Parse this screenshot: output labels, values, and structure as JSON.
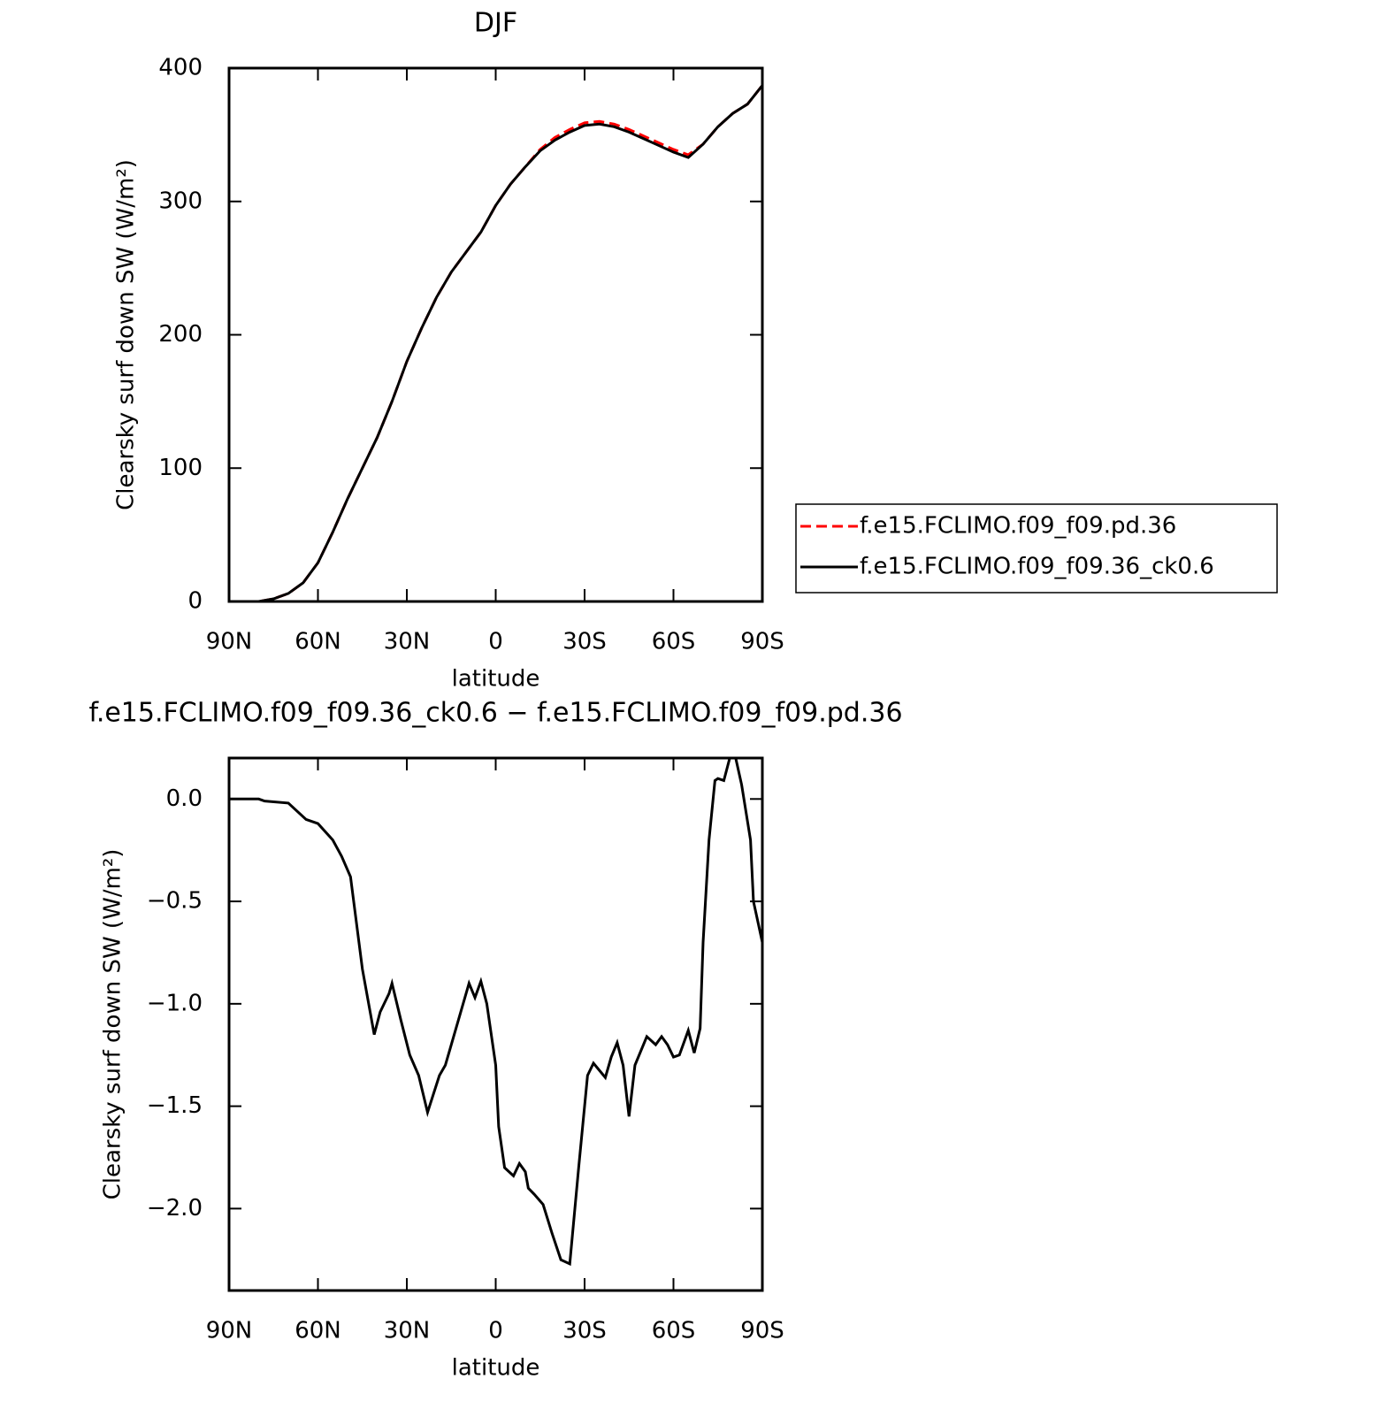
{
  "chart_data": [
    {
      "type": "line",
      "title": "DJF",
      "xlabel": "latitude",
      "ylabel": "Clearsky surf down SW (W/m²)",
      "x": [
        90,
        85,
        80,
        75,
        70,
        65,
        60,
        55,
        50,
        45,
        40,
        35,
        30,
        25,
        20,
        15,
        10,
        5,
        0,
        -5,
        -10,
        -15,
        -20,
        -25,
        -30,
        -35,
        -40,
        -45,
        -50,
        -55,
        -60,
        -65,
        -70,
        -75,
        -80,
        -85,
        -90
      ],
      "series": [
        {
          "name": "f.e15.FCLIMO.f09_f09.pd.36",
          "color": "#ff0000",
          "dash": true,
          "values": [
            0,
            0,
            0,
            2,
            6,
            14,
            29,
            52,
            77,
            100,
            123,
            150,
            180,
            205,
            228,
            247,
            262,
            277,
            297,
            313,
            326,
            339,
            348,
            354,
            359,
            360,
            358,
            354,
            349,
            344,
            339,
            335,
            343,
            356,
            366,
            373,
            387
          ]
        },
        {
          "name": "f.e15.FCLIMO.f09_f09.36_ck0.6",
          "color": "#000000",
          "dash": false,
          "values": [
            0,
            0,
            0,
            2,
            6,
            14,
            29,
            52,
            77,
            100,
            123,
            150,
            180,
            205,
            228,
            247,
            262,
            277,
            297,
            313,
            326,
            338,
            346,
            352,
            357,
            358,
            356,
            352,
            347,
            342,
            337,
            333,
            343,
            356,
            366,
            373,
            387
          ]
        }
      ],
      "xlim": [
        90,
        -90
      ],
      "xticks": [
        {
          "value": 90,
          "label": "90N"
        },
        {
          "value": 60,
          "label": "60N"
        },
        {
          "value": 30,
          "label": "30N"
        },
        0,
        {
          "value": -30,
          "label": "30S"
        },
        {
          "value": -60,
          "label": "60S"
        },
        {
          "value": -90,
          "label": "90S"
        }
      ],
      "ylim": [
        0,
        400
      ],
      "yticks": [
        0,
        100,
        200,
        300,
        400
      ],
      "legend": "right"
    },
    {
      "type": "line",
      "title": "f.e15.FCLIMO.f09_f09.36_ck0.6 − f.e15.FCLIMO.f09_f09.pd.36",
      "xlabel": "latitude",
      "ylabel": "Clearsky surf down SW (W/m²)",
      "x": [
        90,
        80,
        78,
        70,
        64,
        60,
        55,
        52,
        49,
        45,
        41,
        39,
        36,
        35,
        32,
        29,
        26,
        23,
        19,
        17,
        15,
        12,
        9,
        7,
        5,
        3,
        0,
        -1,
        -3,
        -6,
        -8,
        -10,
        -11,
        -13,
        -16,
        -19,
        -22,
        -25,
        -28,
        -31,
        -33,
        -37,
        -39,
        -41,
        -43,
        -45,
        -47,
        -51,
        -54,
        -56,
        -58,
        -60,
        -62,
        -65,
        -67,
        -69,
        -70,
        -72,
        -74,
        -75,
        -77,
        -79,
        -81,
        -83,
        -86,
        -87,
        -90
      ],
      "series": [
        {
          "color": "#000000",
          "dash": false,
          "values": [
            0,
            0,
            -0.01,
            -0.02,
            -0.1,
            -0.12,
            -0.2,
            -0.28,
            -0.38,
            -0.83,
            -1.15,
            -1.04,
            -0.95,
            -0.9,
            -1.08,
            -1.25,
            -1.35,
            -1.53,
            -1.35,
            -1.3,
            -1.2,
            -1.05,
            -0.9,
            -0.97,
            -0.89,
            -1.0,
            -1.3,
            -1.6,
            -1.8,
            -1.84,
            -1.78,
            -1.82,
            -1.9,
            -1.93,
            -1.98,
            -2.12,
            -2.25,
            -2.27,
            -1.8,
            -1.35,
            -1.29,
            -1.36,
            -1.26,
            -1.19,
            -1.3,
            -1.55,
            -1.3,
            -1.16,
            -1.2,
            -1.16,
            -1.2,
            -1.26,
            -1.25,
            -1.13,
            -1.24,
            -1.12,
            -0.7,
            -0.2,
            0.09,
            0.1,
            0.09,
            0.2,
            0.2,
            0.07,
            -0.2,
            -0.5,
            -0.7
          ]
        }
      ],
      "xlim": [
        90,
        -90
      ],
      "xticks": [
        {
          "value": 90,
          "label": "90N"
        },
        {
          "value": 60,
          "label": "60N"
        },
        {
          "value": 30,
          "label": "30N"
        },
        0,
        {
          "value": -30,
          "label": "30S"
        },
        {
          "value": -60,
          "label": "60S"
        },
        {
          "value": -90,
          "label": "90S"
        }
      ],
      "ylim": [
        -2.4,
        0.2
      ],
      "yticks": [
        {
          "value": 0,
          "label": "0.0"
        },
        {
          "value": -0.5,
          "label": "−0.5"
        },
        {
          "value": -1,
          "label": "−1.0"
        },
        {
          "value": -1.5,
          "label": "−1.5"
        },
        {
          "value": -2,
          "label": "−2.0"
        }
      ]
    }
  ]
}
